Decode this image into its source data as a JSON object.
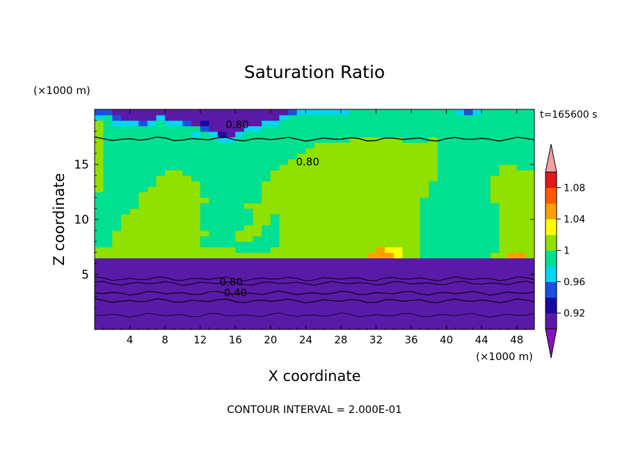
{
  "chart_data": {
    "type": "heatmap",
    "title": "Saturation Ratio",
    "xlabel": "X coordinate",
    "ylabel": "Z coordinate",
    "x_unit": "(×1000 m)",
    "y_unit": "(×1000 m)",
    "xlim": [
      0,
      50
    ],
    "ylim": [
      0,
      20
    ],
    "x_ticks": [
      4,
      8,
      12,
      16,
      20,
      24,
      28,
      32,
      36,
      40,
      44,
      48
    ],
    "y_ticks": [
      5,
      10,
      15
    ],
    "time_label": "t=165600 s",
    "footer": "CONTOUR INTERVAL = 2.000E-01",
    "colorbar": {
      "labels": [
        "1.08",
        "1.04",
        "1",
        "0.96",
        "0.92"
      ],
      "label_values": [
        1.08,
        1.04,
        1.0,
        0.96,
        0.92
      ],
      "levels": [
        0.9,
        0.92,
        0.94,
        0.96,
        0.98,
        1.0,
        1.02,
        1.04,
        1.06,
        1.08,
        1.1
      ],
      "colors": [
        "#5a1aa8",
        "#1a0aa0",
        "#1a50e0",
        "#00d6f0",
        "#00e090",
        "#90e000",
        "#ffff00",
        "#ffa000",
        "#ff5a00",
        "#e01818"
      ],
      "under_color": "#8a10c0",
      "over_color": "#f0a0a0"
    },
    "contour_labels": [
      "0.80",
      "0.80",
      "0.80",
      "0.40"
    ],
    "grid": false,
    "field": {
      "dx_km": 1,
      "dz_km": 0.5,
      "columns": [
        "AAAAAAAAAAAAAFFEEEEEEEEEEFFFFFFFFFFFFFDCAAAA",
        "AAAAAAAAAAAAAFFEEEEEEEEEEEEEEEEEEEEEEEECAAAA",
        "AAAAAAAAAAAAAFFFFFEEEEEEEEEEEEEEEEEEEDCAAAAA",
        "AAAAAAAAAAAAAFFFFFFFFEEEEEEEEEEEEEEEEDAAAAAA",
        "AAAAAAAAAAAAAFFFFFFFFFEEEEEEEEEEEEEEEDAAAAAA",
        "AAAAAAAAAAAAAFFFFFFFFFFFFEEEEEEEEEEEECAAAAAA",
        "AAAAAAAAAAAAAFFFFFFFFFFFFFEEEEEEEEEEEDAAAAAA",
        "AAAAAAAAAAAAAFFFFFFFFFFFFFFFEEEEEEEEEEDAAAAA",
        "AAAAAAAAAAAAAFFFFFFFFFFFFFFFFEEEEEEEEDAAAAAA",
        "AAAAAAAAAAAAAFFFFFFFFFFFFFFFFEEEEEEEEDAAAAAA",
        "AAAAAAAAAAAAAFFFFFFFFFFFFFFFEEEEEEEEECAAAAAA",
        "AAAAAAAAAAAAAFFFFFFFFFFFFFFEEEEEEEEDEAAAAAAA",
        "AAAAAAAAAAAAAFFEEFEEEEEFEEEEEEEEEEEECBAAAAAA",
        "AAAAAAAAAAAAAFFEEEEEEEEEEEEEEEEEEEEDAAAAAAAA",
        "AAAAAAAAAAAAAFFEEEEEEEEEEEEEEEEEEEDBAAAAAAAA",
        "AAAAAAAAAAAAAFFEEEEEEEEEEEEEEEEEEEDAAAAAAAAA",
        "AAAAAAAAAAAAAFEEFFEEEEEEEEEEEEEEEEEDAAAAAAAA",
        "AAAAAAAAAAAAAFEEFFFEEEFEEEEEEEEEEEEEDAAAAAAA",
        "AAAAAAAAAAAAAFEEEFFFFFFEEEEEEEEEEEEEDAAAAAAA",
        "AAAAAAAAAAAAAFEEEEEFFFFFFFFEEEEEEEEEEDAAAAAA",
        "AAAAAAAAAAAAAFFEEEEEEFFFFFFFFEEEEEEEEDAAAAAA",
        "AAAAAAAAAAAAAFFFFFFFFFFFFFFFFFEEEEEEEEDAAAAA",
        "AAAAAAAAAAAAAFFFFFFFFFFFFFFFFFFEEEEEEEECAAAA",
        "AAAAAAAAAAAAAFFFFFFFFFFFFFFFFFFFEEEEEEEDAAAA",
        "AAAAAAAAAAAAAFFFFFFFFFFFFFFFFFFFFEEEEEEDAAAA",
        "AAAAAAAAAAAAAFFFFFFFFFFFFFFFFFFFFFEEEEEDAAAA",
        "AAAAAAAAAAAAAFFFFFFFFFFFFFFFFFFFFFEEEEEDAAAA",
        "AAAAAAAAAAAAAFFFFFFFFFFFFFFFFFFFFFEEEEEDAAAA",
        "AAAAAAAAAAAAAFFFFFFFFFFFFFFFFFFFFFEEEEEDAAAA",
        "AAAAAAAAAAAAAFFFFFFFFFFFFFFFFFFFFFFEEEEEAAAA",
        "AAAAAAAAAAAAAFFFFFFFFFFFFFFFFFFFFFFEEEEEAAAA",
        "AAAAAAAAAAAAAHFFFFFFFFFFFFFFFFFFFFFEEEEEAAAA",
        "AAAAAAAAAAAAAHHFFFFFFFFFFFFFFFFFFFFEEEEEAAAA",
        "AAAAAAAAAAAAAHGFFFFFFFFFFFFFFFFFFFFEEEEEAAAA",
        "AAAAAAAAAAAAAGGFFFFFFFFFFFFFFFFFFFFEEEEEAAAA",
        "AAAAAAAAAAAAAFFFFFFFFFFFFFFFFFFFFFEEEEEEAAAA",
        "AAAAAAAAAAAAAFFFFFFFFFFFFFFFFFFFFFEEEEEEAAAA",
        "AAAAAAAAAAAAAEEEEEEEEEEEFFFFFFFFFFEEEEEEAAAA",
        "AAAAAAAAAAAAAEEEEEEEEEEEEEEFFFFFFFFEEEEEAAAA",
        "AAAAAAAAAAAAAEEEEEEEEEEEEEEEEEEEEEEEEEEEAAAA",
        "AAAAAAAAAAAAAEEEEEEEEEEEEEEEEEEEEEEEEEEEAAAA",
        "AAAAAAAAAAAAAEEEEEEEEEEEEEEEEEEEEEEEEEEDAAAA",
        "AAAAAAAAAAAAAEEEEEEEEEEEEEEEEEEEEEEEEEECAAAA",
        "AAAAAAAAAAAAAEEEEEEEEEEEEEEEEEEEEEEEEEEDAAAA",
        "AAAAAAAAAAAAAEEEEEEEEEEEEEEEEEEEEEEEEEEEAAAA",
        "AAAAAAAAAAAAAFEEEEEEEEEFFFFFEEEEEEEEEEEEAAAA",
        "AAAAAAAAAAAAAFFFFFFFFFFFFFFFFFEEEEEEEEEECAAA",
        "AAAAAAAAAAAAAHFFFFFFFFFFFFFFFFEEEEEEEEEECAAA",
        "AAAAAAAAAAAAAHFFFFFFFFFFFFFFFEEEEEEEEEEEDAAA",
        "AAAAAAAAAAAAAFFFFFFFFFFFFFFFFEEEEEEEEEEEEDBA"
      ]
    }
  }
}
